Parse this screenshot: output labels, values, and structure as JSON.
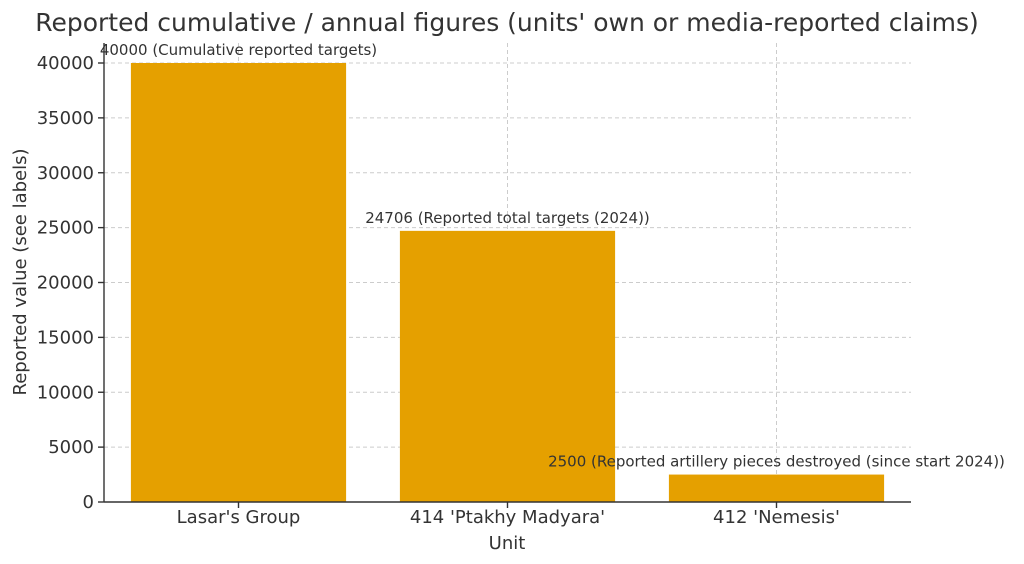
{
  "colors": {
    "bar": "#E5A000",
    "text": "#333333",
    "grid": "#cccccc"
  },
  "chart_data": {
    "type": "bar",
    "title": "Reported cumulative / annual figures (units' own or media-reported claims)",
    "xlabel": "Unit",
    "ylabel": "Reported value (see labels)",
    "categories": [
      "Lasar's Group",
      "414 'Ptakhy Madyara'",
      "412 'Nemesis'"
    ],
    "values": [
      40000,
      24706,
      2500
    ],
    "data_labels": [
      "40000 (Cumulative reported targets)",
      "24706 (Reported total targets (2024))",
      "2500 (Reported artillery pieces destroyed (since start 2024))"
    ],
    "ylim": [
      0,
      40000
    ],
    "yticks": [
      0,
      5000,
      10000,
      15000,
      20000,
      25000,
      30000,
      35000,
      40000
    ],
    "grid": true
  }
}
